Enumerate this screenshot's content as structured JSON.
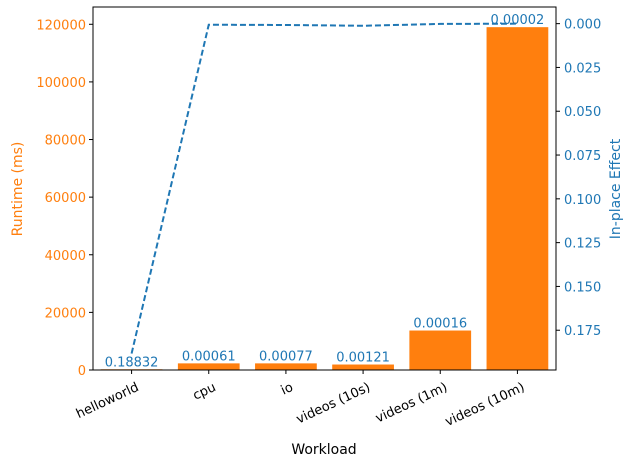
{
  "chart_data": {
    "type": "bar",
    "categories": [
      "helloworld",
      "cpu",
      "io",
      "videos (10s)",
      "videos (1m)",
      "videos (10m)"
    ],
    "xlabel": "Workload",
    "y_left": {
      "label": "Runtime (ms)",
      "range": [
        0,
        126000
      ],
      "ticks": [
        0,
        20000,
        40000,
        60000,
        80000,
        100000,
        120000
      ],
      "tick_labels": [
        "0",
        "20000",
        "40000",
        "60000",
        "80000",
        "100000",
        "120000"
      ],
      "color": "#ff7f0e"
    },
    "y_right": {
      "label": "In-place Effect",
      "inverted": true,
      "range": [
        -0.0095,
        0.1977
      ],
      "ticks": [
        0.0,
        0.025,
        0.05,
        0.075,
        0.1,
        0.125,
        0.15,
        0.175
      ],
      "tick_labels": [
        "0.000",
        "0.025",
        "0.050",
        "0.075",
        "0.100",
        "0.125",
        "0.150",
        "0.175"
      ],
      "color": "#1f77b4"
    },
    "series": [
      {
        "name": "Runtime (ms)",
        "kind": "bar",
        "color": "#ff7f0e",
        "values": [
          250,
          2300,
          2300,
          1900,
          13700,
          119000
        ]
      },
      {
        "name": "In-place Effect",
        "kind": "line",
        "style": "dashed",
        "color": "#1f77b4",
        "values": [
          0.18832,
          0.00061,
          0.00077,
          0.00121,
          0.00016,
          2e-05
        ],
        "data_labels": [
          "0.18832",
          "0.00061",
          "0.00077",
          "0.00121",
          "0.00016",
          "0.00002"
        ]
      }
    ],
    "grid": false,
    "legend": "none"
  }
}
